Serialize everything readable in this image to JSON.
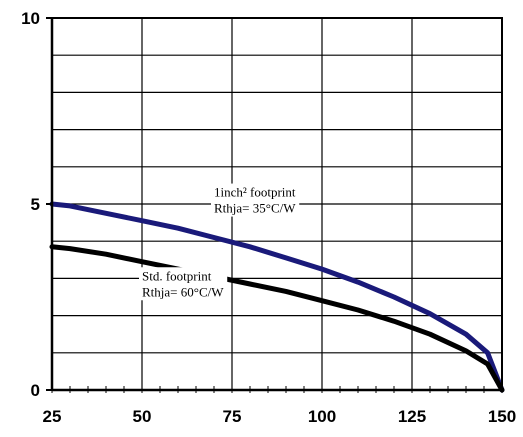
{
  "chart_data": {
    "type": "line",
    "title": "",
    "xlabel": "",
    "ylabel": "",
    "xlim": [
      25,
      150
    ],
    "ylim": [
      0,
      10
    ],
    "x_ticks": [
      25,
      50,
      75,
      100,
      125,
      150
    ],
    "y_ticks_labeled": [
      0,
      5,
      10
    ],
    "grid": true,
    "legend": "none",
    "series": [
      {
        "color": "#1a1a7a",
        "x": [
          25,
          30,
          40,
          50,
          60,
          70,
          80,
          90,
          100,
          110,
          120,
          130,
          140,
          146,
          150
        ],
        "y": [
          5.0,
          4.95,
          4.75,
          4.55,
          4.35,
          4.1,
          3.85,
          3.55,
          3.25,
          2.9,
          2.5,
          2.05,
          1.5,
          1.0,
          0.0
        ]
      },
      {
        "color": "#000000",
        "x": [
          25,
          30,
          40,
          50,
          60,
          70,
          80,
          90,
          100,
          110,
          120,
          130,
          140,
          146,
          150
        ],
        "y": [
          3.85,
          3.8,
          3.65,
          3.45,
          3.25,
          3.05,
          2.85,
          2.65,
          2.4,
          2.15,
          1.85,
          1.5,
          1.05,
          0.7,
          0.0
        ]
      }
    ],
    "annotations": [
      {
        "lines": [
          "1inch² footprint",
          "Rthja= 35°C/W"
        ],
        "x": 70,
        "y": 5.2
      },
      {
        "lines": [
          "Std. footprint",
          "Rthja= 60°C/W"
        ],
        "x": 50,
        "y": 2.95
      }
    ]
  }
}
